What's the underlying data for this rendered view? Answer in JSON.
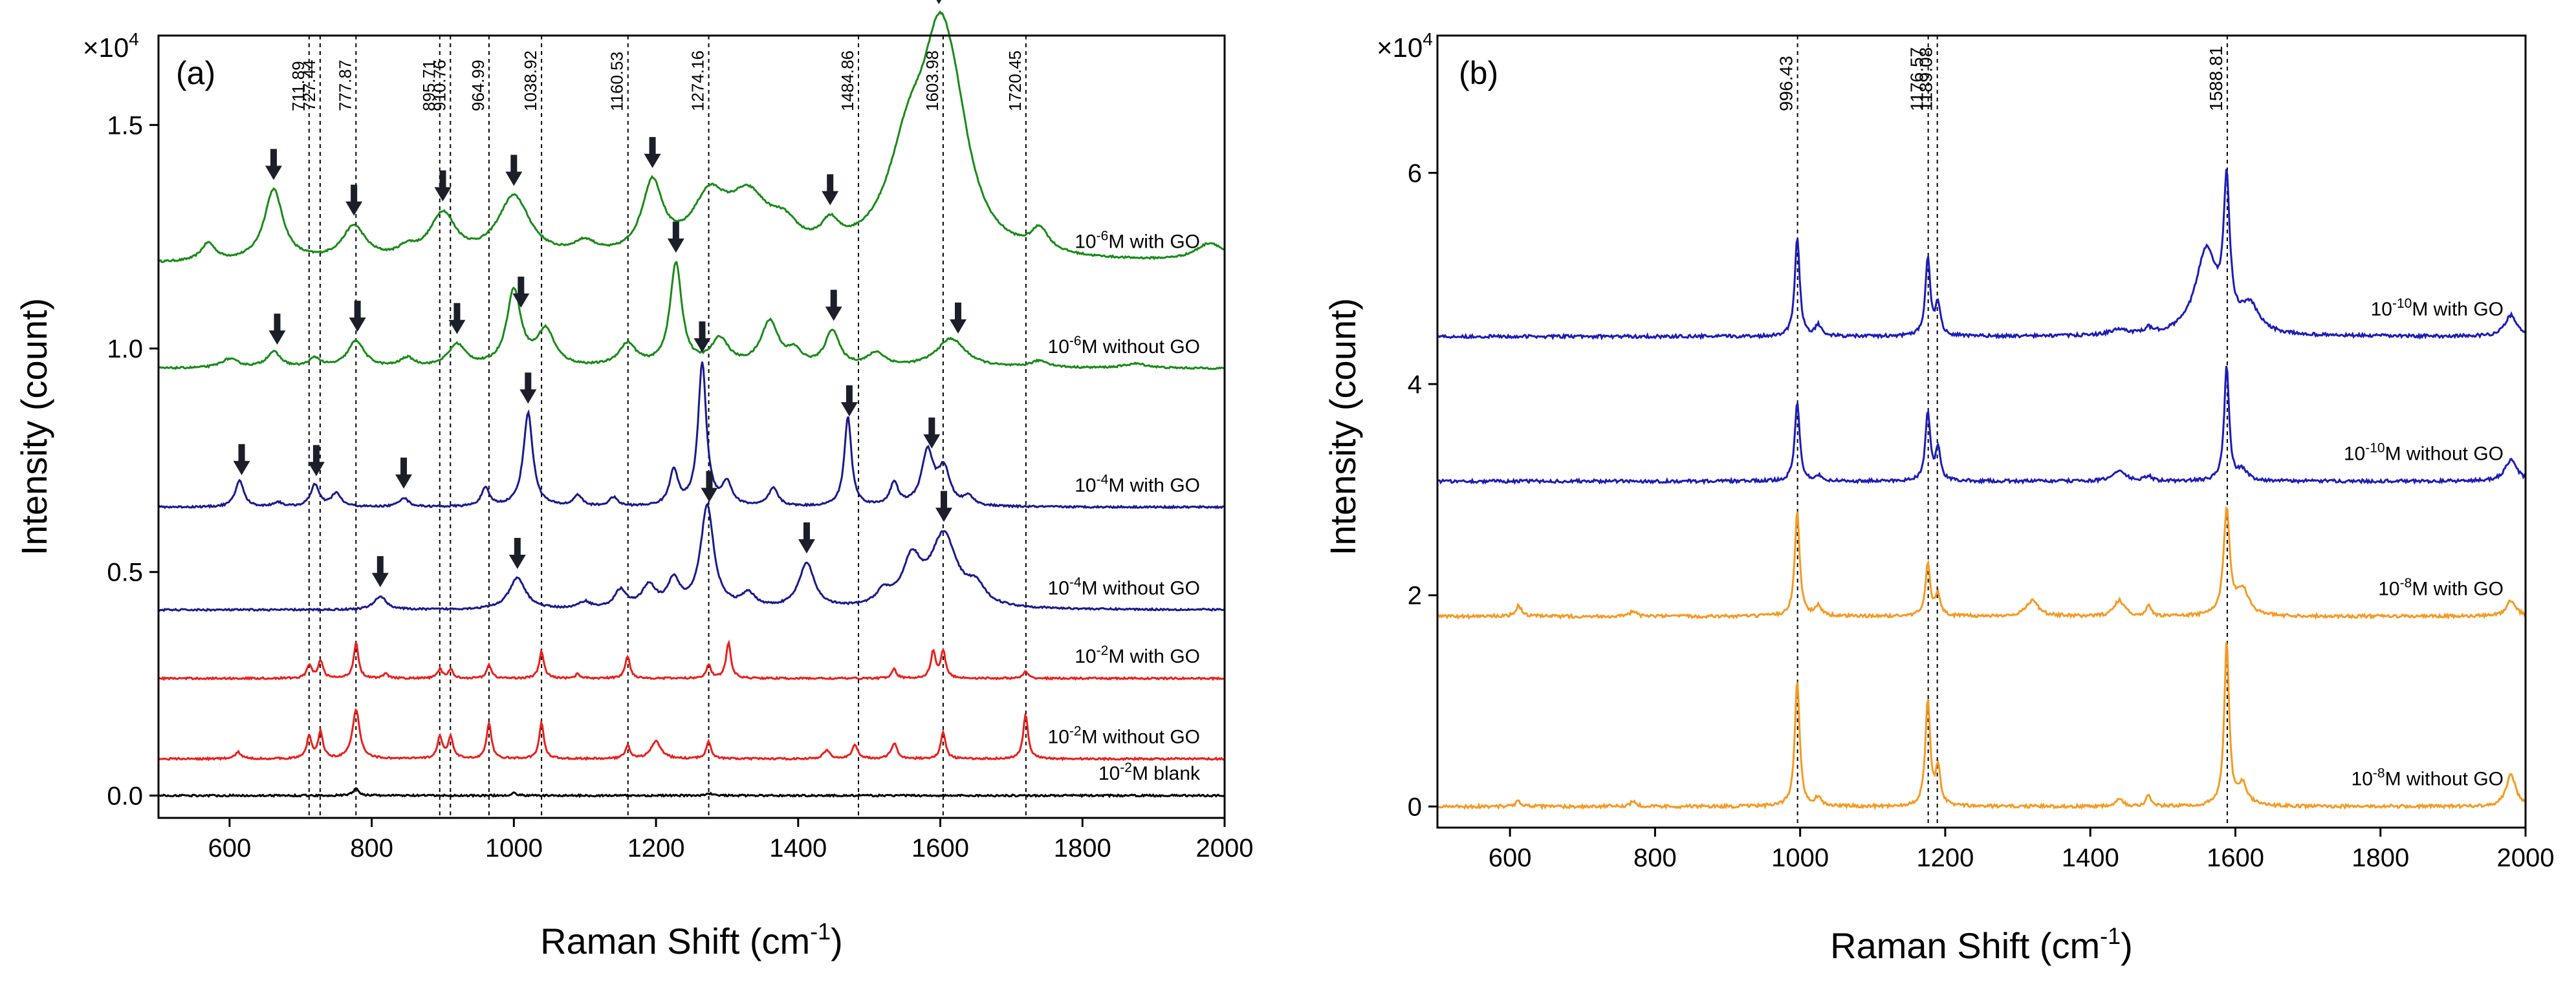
{
  "chart_data": [
    {
      "panel_label": "(a)",
      "type": "line",
      "xlabel": "Raman Shift (cm",
      "xlabel_sup": "-1",
      "xlabel_end": ")",
      "ylabel": "Intensity (count)",
      "multiplier": "×10",
      "multiplier_exp": "4",
      "xlim": [
        500,
        2000
      ],
      "ylim": [
        -0.05,
        1.7
      ],
      "xticks": [
        "600",
        "800",
        "1000",
        "1200",
        "1400",
        "1600",
        "1800",
        "2000"
      ],
      "yticks": [
        "0.0",
        "0.5",
        "1.0",
        "1.5"
      ],
      "ytick_values": [
        0,
        0.5,
        1.0,
        1.5
      ],
      "ref_lines": [
        {
          "x": 711.89,
          "label": "711.89"
        },
        {
          "x": 727.44,
          "label": "727.44"
        },
        {
          "x": 777.87,
          "label": "777.87"
        },
        {
          "x": 895.71,
          "label": "895.71"
        },
        {
          "x": 910.76,
          "label": "910.76"
        },
        {
          "x": 964.99,
          "label": "964.99"
        },
        {
          "x": 1038.92,
          "label": "1038.92"
        },
        {
          "x": 1160.53,
          "label": "1160.53"
        },
        {
          "x": 1274.16,
          "label": "1274.16"
        },
        {
          "x": 1484.86,
          "label": "1484.86"
        },
        {
          "x": 1603.98,
          "label": "1603.98"
        },
        {
          "x": 1720.45,
          "label": "1720.45"
        }
      ],
      "series": [
        {
          "label_pre": "10",
          "label_sup": "-6",
          "label_post": "M with GO",
          "color": "#1a8a1a",
          "baseline": 1.19,
          "peaks": [
            [
              570,
              0.04,
              12
            ],
            [
              662,
              0.16,
              16
            ],
            [
              775,
              0.075,
              20
            ],
            [
              850,
              0.02,
              15
            ],
            [
              900,
              0.1,
              22
            ],
            [
              1000,
              0.14,
              28
            ],
            [
              1100,
              0.03,
              20
            ],
            [
              1195,
              0.16,
              18
            ],
            [
              1275,
              0.12,
              30
            ],
            [
              1330,
              0.12,
              35
            ],
            [
              1380,
              0.05,
              25
            ],
            [
              1445,
              0.05,
              15
            ],
            [
              1555,
              0.2,
              35
            ],
            [
              1600,
              0.43,
              32
            ],
            [
              1625,
              0.1,
              25
            ],
            [
              1740,
              0.05,
              15
            ],
            [
              1980,
              0.04,
              25
            ]
          ],
          "arrows": [
            662,
            775,
            900,
            1000,
            1195,
            1445,
            1598
          ]
        },
        {
          "label_pre": "10",
          "label_sup": "-6",
          "label_post": "M without GO",
          "color": "#1a8a1a",
          "baseline": 0.955,
          "peaks": [
            [
              600,
              0.02,
              15
            ],
            [
              662,
              0.035,
              12
            ],
            [
              720,
              0.02,
              10
            ],
            [
              778,
              0.06,
              14
            ],
            [
              850,
              0.02,
              12
            ],
            [
              920,
              0.05,
              15
            ],
            [
              1000,
              0.17,
              12
            ],
            [
              1045,
              0.08,
              15
            ],
            [
              1160,
              0.05,
              15
            ],
            [
              1228,
              0.23,
              10
            ],
            [
              1290,
              0.06,
              15
            ],
            [
              1360,
              0.1,
              15
            ],
            [
              1395,
              0.03,
              12
            ],
            [
              1448,
              0.08,
              12
            ],
            [
              1510,
              0.03,
              15
            ],
            [
              1615,
              0.065,
              25
            ],
            [
              1740,
              0.015,
              15
            ],
            [
              1875,
              0.01,
              20
            ]
          ],
          "arrows": [
            667,
            780,
            920,
            1010,
            1228,
            1450,
            1625
          ]
        },
        {
          "label_pre": "10",
          "label_sup": "-4",
          "label_post": "M with GO",
          "color": "#1a1a8c",
          "baseline": 0.645,
          "peaks": [
            [
              614,
              0.06,
              7
            ],
            [
              668,
              0.01,
              8
            ],
            [
              720,
              0.05,
              7
            ],
            [
              750,
              0.03,
              8
            ],
            [
              845,
              0.02,
              8
            ],
            [
              960,
              0.04,
              7
            ],
            [
              1020,
              0.21,
              8
            ],
            [
              1090,
              0.025,
              7
            ],
            [
              1140,
              0.02,
              7
            ],
            [
              1225,
              0.08,
              7
            ],
            [
              1265,
              0.32,
              7
            ],
            [
              1300,
              0.05,
              8
            ],
            [
              1365,
              0.04,
              8
            ],
            [
              1470,
              0.2,
              6
            ],
            [
              1535,
              0.05,
              7
            ],
            [
              1582,
              0.12,
              10
            ],
            [
              1605,
              0.08,
              10
            ],
            [
              1640,
              0.02,
              8
            ]
          ],
          "arrows": [
            617,
            722,
            845,
            1020,
            1265,
            1472,
            1588
          ]
        },
        {
          "label_pre": "10",
          "label_sup": "-4",
          "label_post": "M without GO",
          "color": "#1a1a8c",
          "baseline": 0.415,
          "peaks": [
            [
              812,
              0.03,
              10
            ],
            [
              1005,
              0.07,
              14
            ],
            [
              1100,
              0.015,
              10
            ],
            [
              1150,
              0.04,
              10
            ],
            [
              1190,
              0.05,
              12
            ],
            [
              1225,
              0.06,
              10
            ],
            [
              1272,
              0.23,
              11
            ],
            [
              1330,
              0.03,
              12
            ],
            [
              1412,
              0.1,
              13
            ],
            [
              1520,
              0.03,
              12
            ],
            [
              1560,
              0.1,
              16
            ],
            [
              1605,
              0.16,
              22
            ],
            [
              1650,
              0.04,
              15
            ]
          ],
          "arrows": [
            812,
            1005,
            1275,
            1412,
            1605
          ]
        },
        {
          "label_pre": "10",
          "label_sup": "-2",
          "label_post": "M with GO",
          "color": "#e8211d",
          "baseline": 0.262,
          "peaks": [
            [
              712,
              0.03,
              4
            ],
            [
              728,
              0.04,
              4
            ],
            [
              778,
              0.08,
              4
            ],
            [
              820,
              0.01,
              4
            ],
            [
              896,
              0.02,
              4
            ],
            [
              911,
              0.02,
              4
            ],
            [
              965,
              0.03,
              4
            ],
            [
              1039,
              0.06,
              4
            ],
            [
              1090,
              0.01,
              4
            ],
            [
              1160,
              0.05,
              4
            ],
            [
              1274,
              0.03,
              4
            ],
            [
              1302,
              0.08,
              4
            ],
            [
              1535,
              0.02,
              4
            ],
            [
              1590,
              0.06,
              4
            ],
            [
              1604,
              0.06,
              4
            ],
            [
              1720,
              0.015,
              4
            ]
          ],
          "arrows": []
        },
        {
          "label_pre": "10",
          "label_sup": "-2",
          "label_post": "M without GO",
          "color": "#e8211d",
          "baseline": 0.082,
          "peaks": [
            [
              612,
              0.015,
              5
            ],
            [
              712,
              0.05,
              4
            ],
            [
              728,
              0.06,
              4
            ],
            [
              778,
              0.11,
              6
            ],
            [
              896,
              0.05,
              4
            ],
            [
              911,
              0.05,
              4
            ],
            [
              965,
              0.08,
              4
            ],
            [
              1039,
              0.08,
              4
            ],
            [
              1160,
              0.03,
              4
            ],
            [
              1200,
              0.04,
              8
            ],
            [
              1274,
              0.04,
              4
            ],
            [
              1440,
              0.02,
              5
            ],
            [
              1480,
              0.03,
              5
            ],
            [
              1535,
              0.035,
              5
            ],
            [
              1604,
              0.06,
              4
            ],
            [
              1720,
              0.1,
              4
            ]
          ],
          "arrows": []
        },
        {
          "label_pre": "10",
          "label_sup": "-2",
          "label_post": "M blank",
          "color": "#000000",
          "baseline": 0.0,
          "peaks": [
            [
              778,
              0.015,
              5
            ],
            [
              1000,
              0.005,
              5
            ],
            [
              1274,
              0.005,
              5
            ]
          ],
          "arrows": []
        }
      ]
    },
    {
      "panel_label": "(b)",
      "type": "line",
      "xlabel": "Raman Shift (cm",
      "xlabel_sup": "-1",
      "xlabel_end": ")",
      "ylabel": "Intensity (count)",
      "multiplier": "×10",
      "multiplier_exp": "4",
      "xlim": [
        500,
        2000
      ],
      "ylim": [
        -0.2,
        7.3
      ],
      "xticks": [
        "600",
        "800",
        "1000",
        "1200",
        "1400",
        "1600",
        "1800",
        "2000"
      ],
      "yticks": [
        "0",
        "2",
        "4",
        "6"
      ],
      "ytick_values": [
        0,
        2,
        4,
        6
      ],
      "ref_lines": [
        {
          "x": 996.43,
          "label": "996.43"
        },
        {
          "x": 1176.57,
          "label": "1176.57"
        },
        {
          "x": 1189.08,
          "label": "1189.08"
        },
        {
          "x": 1588.81,
          "label": "1588.81"
        }
      ],
      "series": [
        {
          "label_pre": "10",
          "label_sup": "-10",
          "label_post": "M with GO",
          "color": "#1c1cb8",
          "baseline": 4.45,
          "peaks": [
            [
              996,
              0.95,
              4
            ],
            [
              1025,
              0.1,
              5
            ],
            [
              1176,
              0.75,
              4
            ],
            [
              1190,
              0.3,
              4
            ],
            [
              1440,
              0.05,
              15
            ],
            [
              1480,
              0.05,
              5
            ],
            [
              1560,
              0.8,
              18
            ],
            [
              1588,
              1.3,
              5
            ],
            [
              1620,
              0.25,
              15
            ],
            [
              1980,
              0.2,
              10
            ]
          ],
          "arrows": []
        },
        {
          "label_pre": "10",
          "label_sup": "-10",
          "label_post": "M without GO",
          "color": "#1c1cb8",
          "baseline": 3.08,
          "peaks": [
            [
              996,
              0.75,
              4
            ],
            [
              1025,
              0.05,
              5
            ],
            [
              1176,
              0.65,
              4
            ],
            [
              1190,
              0.3,
              4
            ],
            [
              1440,
              0.1,
              10
            ],
            [
              1480,
              0.05,
              5
            ],
            [
              1588,
              1.1,
              4
            ],
            [
              1610,
              0.1,
              8
            ],
            [
              1980,
              0.2,
              10
            ]
          ],
          "arrows": []
        },
        {
          "label_pre": "10",
          "label_sup": "-8",
          "label_post": "M with GO",
          "color": "#f59a23",
          "baseline": 1.8,
          "peaks": [
            [
              612,
              0.1,
              5
            ],
            [
              770,
              0.05,
              5
            ],
            [
              996,
              1.0,
              4
            ],
            [
              1025,
              0.1,
              5
            ],
            [
              1176,
              0.5,
              4
            ],
            [
              1190,
              0.2,
              4
            ],
            [
              1320,
              0.15,
              10
            ],
            [
              1440,
              0.15,
              8
            ],
            [
              1480,
              0.1,
              4
            ],
            [
              1588,
              1.0,
              5
            ],
            [
              1610,
              0.25,
              10
            ],
            [
              1980,
              0.15,
              8
            ]
          ],
          "arrows": []
        },
        {
          "label_pre": "10",
          "label_sup": "-8",
          "label_post": "M without GO",
          "color": "#f59a23",
          "baseline": 0.0,
          "peaks": [
            [
              612,
              0.05,
              5
            ],
            [
              770,
              0.05,
              5
            ],
            [
              996,
              1.2,
              4
            ],
            [
              1025,
              0.08,
              5
            ],
            [
              1176,
              1.0,
              4
            ],
            [
              1190,
              0.35,
              4
            ],
            [
              1440,
              0.08,
              6
            ],
            [
              1480,
              0.1,
              4
            ],
            [
              1588,
              1.55,
              4
            ],
            [
              1610,
              0.2,
              8
            ],
            [
              1980,
              0.3,
              8
            ]
          ],
          "arrows": []
        }
      ]
    }
  ]
}
